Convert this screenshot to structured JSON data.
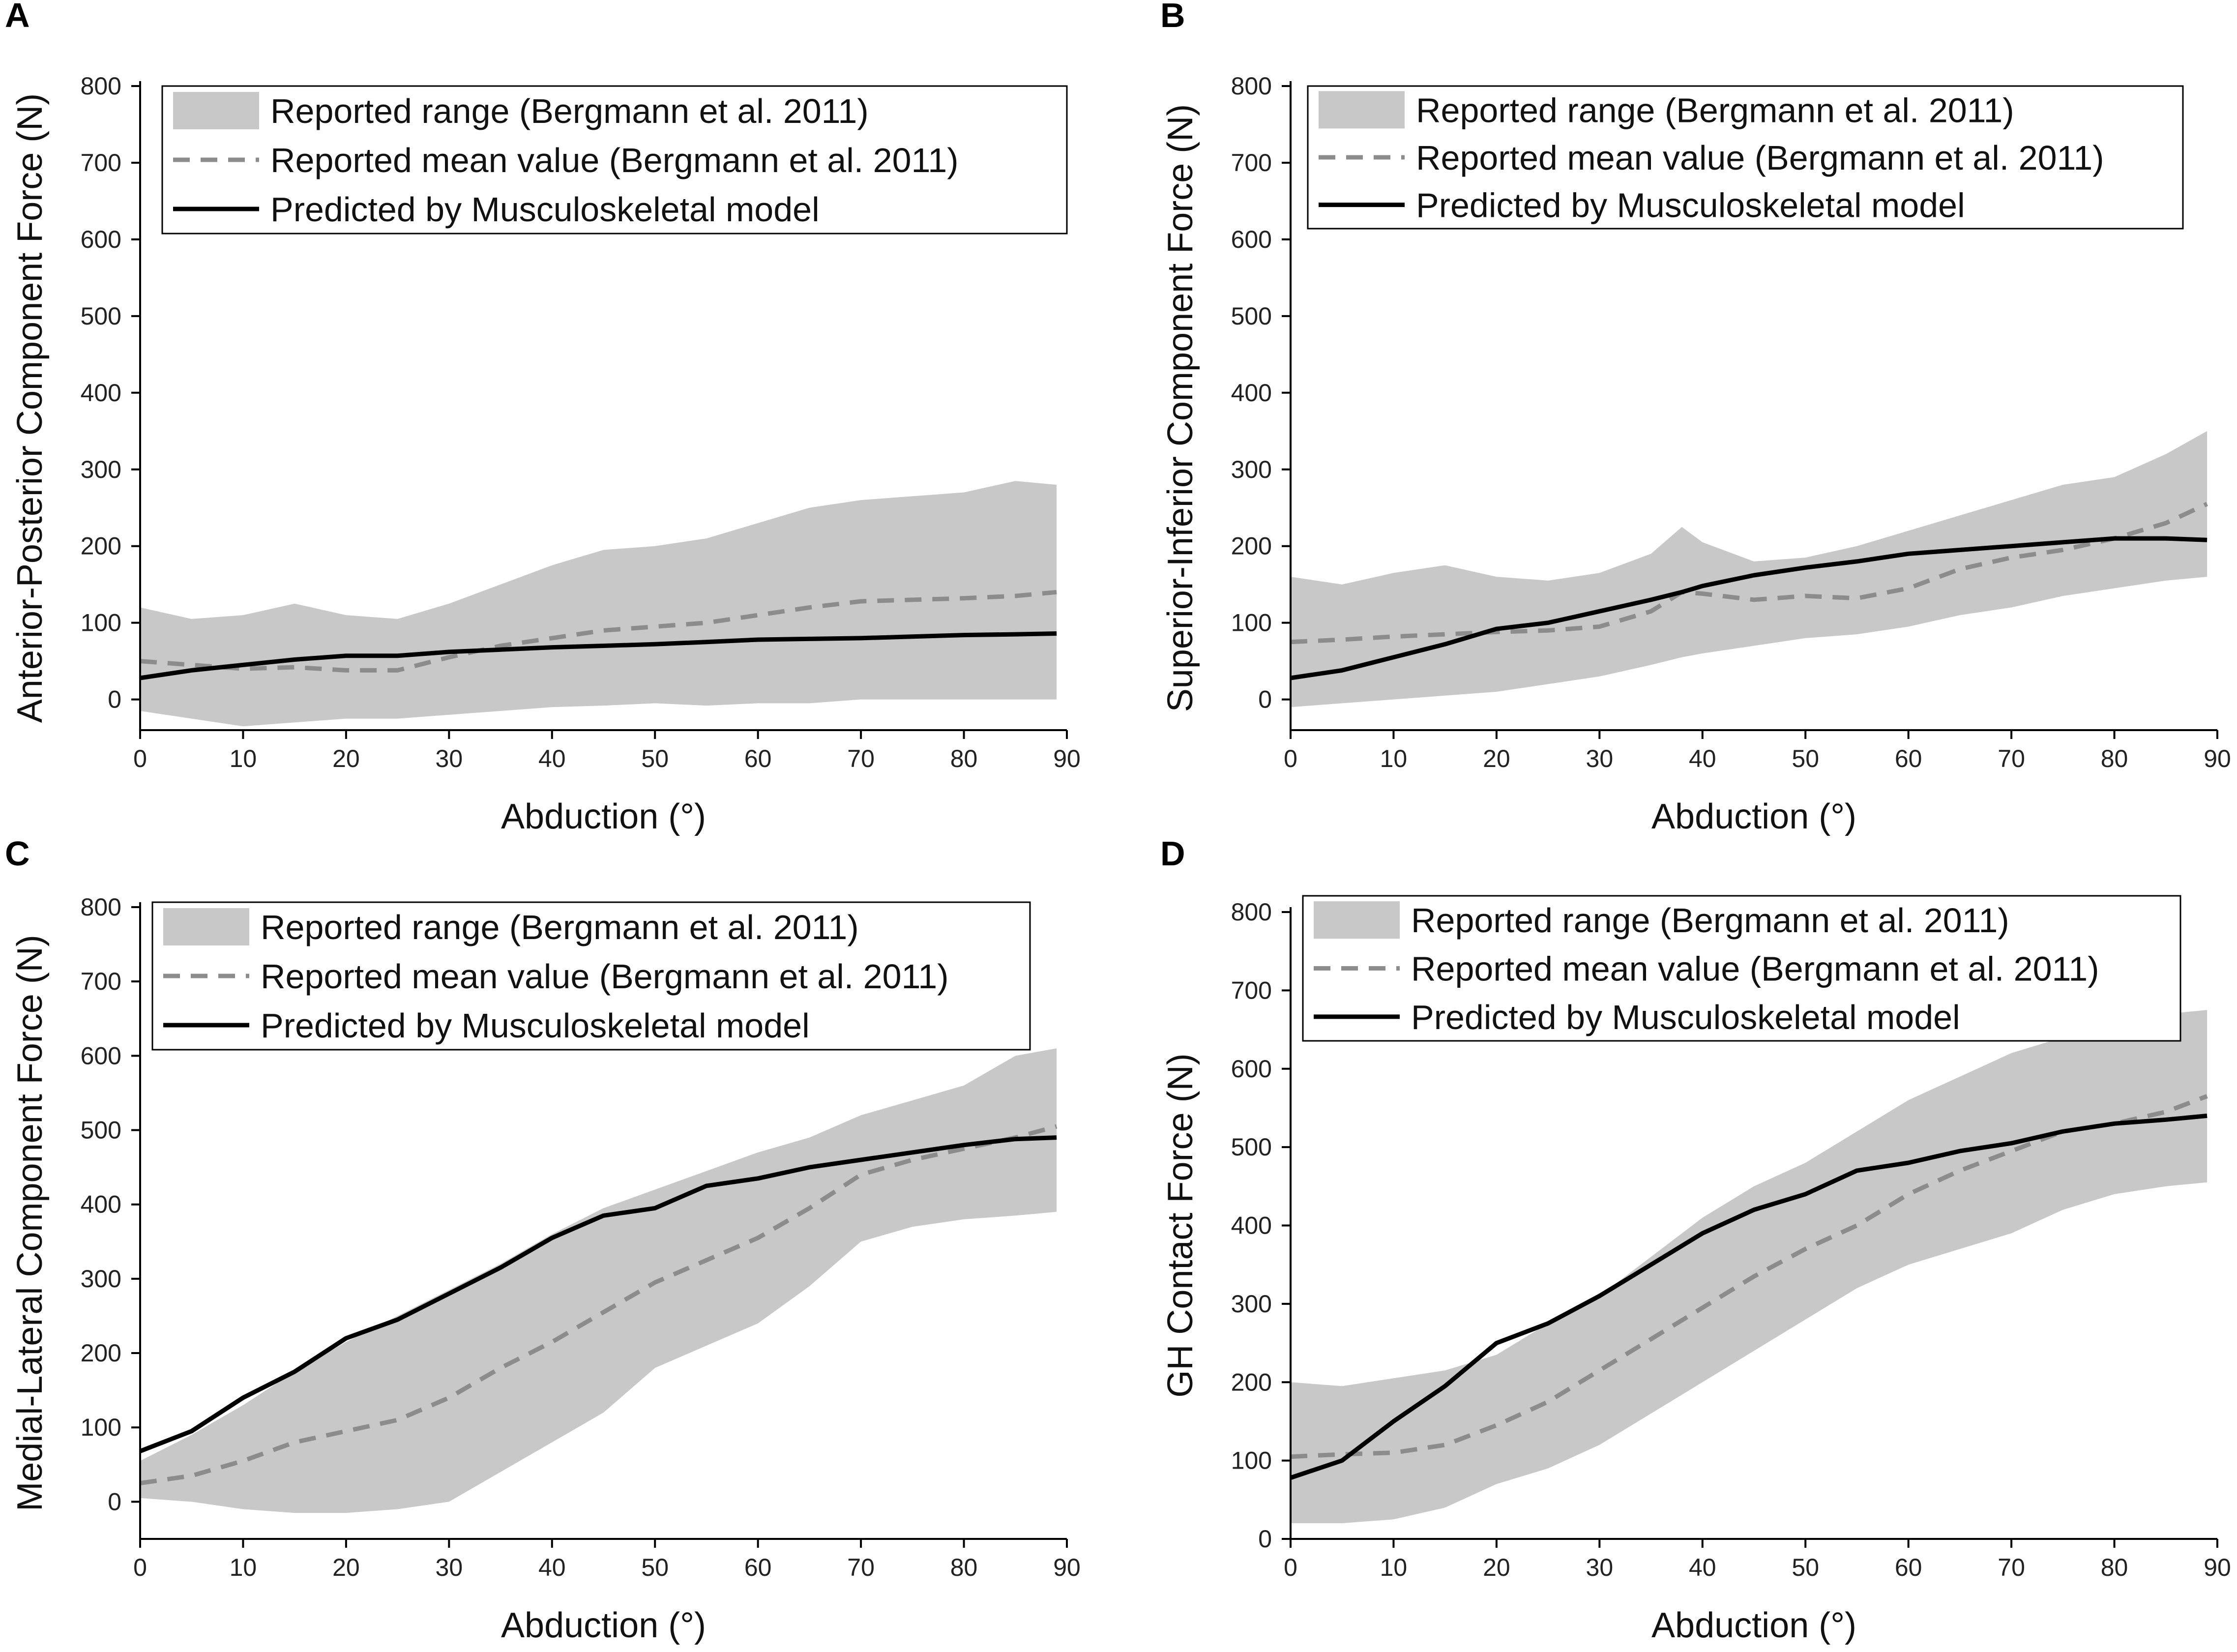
{
  "colors": {
    "band": "#c8c8c8",
    "mean": "#8c8c8c",
    "model": "#000000",
    "axis": "#000000",
    "legend_border": "#000000"
  },
  "chart_data": [
    {
      "panel_label": "A",
      "type": "line",
      "xlabel": "Abduction (°)",
      "ylabel": "Anterior-Posterior Component Force (N)",
      "xlim": [
        0,
        90
      ],
      "ylim": [
        -40,
        800
      ],
      "xticks": [
        0,
        10,
        20,
        30,
        40,
        50,
        60,
        70,
        80,
        90
      ],
      "yticks": [
        0,
        100,
        200,
        300,
        400,
        500,
        600,
        700,
        800
      ],
      "legend": [
        "Reported range (Bergmann et al. 2011)",
        "Reported mean value (Bergmann et al. 2011)",
        "Predicted by Musculoskeletal model"
      ],
      "x": [
        0,
        5,
        10,
        15,
        20,
        25,
        30,
        35,
        40,
        45,
        50,
        55,
        60,
        65,
        70,
        75,
        80,
        85,
        89
      ],
      "range_upper": [
        120,
        105,
        110,
        125,
        110,
        105,
        125,
        150,
        175,
        195,
        200,
        210,
        230,
        250,
        260,
        265,
        270,
        285,
        280
      ],
      "range_lower": [
        -15,
        -25,
        -35,
        -30,
        -25,
        -25,
        -20,
        -15,
        -10,
        -8,
        -5,
        -8,
        -5,
        -5,
        0,
        0,
        0,
        0,
        0
      ],
      "mean": [
        50,
        45,
        40,
        42,
        38,
        38,
        55,
        70,
        80,
        90,
        95,
        100,
        110,
        120,
        128,
        130,
        132,
        135,
        140
      ],
      "model": [
        28,
        38,
        45,
        52,
        57,
        57,
        62,
        65,
        68,
        70,
        72,
        75,
        78,
        79,
        80,
        82,
        84,
        85,
        86
      ]
    },
    {
      "panel_label": "B",
      "type": "line",
      "xlabel": "Abduction (°)",
      "ylabel": "Superior-Inferior Component Force (N)",
      "xlim": [
        0,
        90
      ],
      "ylim": [
        -40,
        800
      ],
      "xticks": [
        0,
        10,
        20,
        30,
        40,
        50,
        60,
        70,
        80,
        90
      ],
      "yticks": [
        0,
        100,
        200,
        300,
        400,
        500,
        600,
        700,
        800
      ],
      "legend": [
        "Reported range (Bergmann et al. 2011)",
        "Reported mean value (Bergmann et al. 2011)",
        "Predicted by Musculoskeletal model"
      ],
      "x": [
        0,
        5,
        10,
        15,
        20,
        25,
        30,
        35,
        38,
        40,
        45,
        50,
        55,
        60,
        65,
        70,
        75,
        80,
        85,
        89
      ],
      "range_upper": [
        160,
        150,
        165,
        175,
        160,
        155,
        165,
        190,
        225,
        205,
        180,
        185,
        200,
        220,
        240,
        260,
        280,
        290,
        320,
        350
      ],
      "range_lower": [
        -10,
        -5,
        0,
        5,
        10,
        20,
        30,
        45,
        55,
        60,
        70,
        80,
        85,
        95,
        110,
        120,
        135,
        145,
        155,
        160
      ],
      "mean": [
        75,
        78,
        82,
        85,
        88,
        90,
        95,
        115,
        140,
        138,
        130,
        135,
        132,
        145,
        170,
        185,
        195,
        210,
        230,
        255
      ],
      "model": [
        28,
        38,
        55,
        72,
        92,
        100,
        115,
        130,
        140,
        148,
        162,
        172,
        180,
        190,
        195,
        200,
        205,
        210,
        210,
        208
      ]
    },
    {
      "panel_label": "C",
      "type": "line",
      "xlabel": "Abduction (°)",
      "ylabel": "Medial-Lateral Component Force (N)",
      "xlim": [
        0,
        90
      ],
      "ylim": [
        -50,
        800
      ],
      "xticks": [
        0,
        10,
        20,
        30,
        40,
        50,
        60,
        70,
        80,
        90
      ],
      "yticks": [
        0,
        100,
        200,
        300,
        400,
        500,
        600,
        700,
        800
      ],
      "legend": [
        "Reported range (Bergmann et al. 2011)",
        "Reported mean value (Bergmann et al. 2011)",
        "Predicted by Musculoskeletal model"
      ],
      "x": [
        0,
        5,
        10,
        15,
        20,
        25,
        30,
        35,
        40,
        45,
        50,
        55,
        60,
        65,
        70,
        75,
        80,
        85,
        89
      ],
      "range_upper": [
        55,
        90,
        130,
        175,
        215,
        250,
        285,
        320,
        360,
        395,
        420,
        445,
        470,
        490,
        520,
        540,
        560,
        600,
        610
      ],
      "range_lower": [
        5,
        0,
        -10,
        -15,
        -15,
        -10,
        0,
        40,
        80,
        120,
        180,
        210,
        240,
        290,
        350,
        370,
        380,
        385,
        390
      ],
      "mean": [
        25,
        35,
        55,
        80,
        95,
        110,
        140,
        180,
        215,
        255,
        295,
        325,
        355,
        395,
        440,
        460,
        475,
        490,
        505
      ],
      "model": [
        68,
        95,
        140,
        175,
        220,
        245,
        280,
        315,
        355,
        385,
        395,
        425,
        435,
        450,
        460,
        470,
        480,
        488,
        490
      ]
    },
    {
      "panel_label": "D",
      "type": "line",
      "xlabel": "Abduction (°)",
      "ylabel": "GH Contact Force (N)",
      "xlim": [
        0,
        90
      ],
      "ylim": [
        0,
        800
      ],
      "xticks": [
        0,
        10,
        20,
        30,
        40,
        50,
        60,
        70,
        80,
        90
      ],
      "yticks": [
        0,
        100,
        200,
        300,
        400,
        500,
        600,
        700,
        800
      ],
      "legend": [
        "Reported range (Bergmann et al. 2011)",
        "Reported mean value (Bergmann et al. 2011)",
        "Predicted by Musculoskeletal model"
      ],
      "x": [
        0,
        5,
        10,
        15,
        20,
        25,
        30,
        35,
        40,
        45,
        50,
        55,
        60,
        65,
        70,
        75,
        80,
        85,
        89
      ],
      "range_upper": [
        200,
        195,
        205,
        215,
        235,
        275,
        310,
        360,
        410,
        450,
        480,
        520,
        560,
        590,
        620,
        640,
        660,
        670,
        675
      ],
      "range_lower": [
        20,
        20,
        25,
        40,
        70,
        90,
        120,
        160,
        200,
        240,
        280,
        320,
        350,
        370,
        390,
        420,
        440,
        450,
        455
      ],
      "mean": [
        105,
        108,
        110,
        120,
        145,
        175,
        215,
        255,
        295,
        335,
        370,
        400,
        440,
        470,
        495,
        520,
        530,
        545,
        565
      ],
      "model": [
        78,
        100,
        150,
        195,
        250,
        275,
        310,
        350,
        390,
        420,
        440,
        470,
        480,
        495,
        505,
        520,
        530,
        535,
        540
      ]
    }
  ]
}
